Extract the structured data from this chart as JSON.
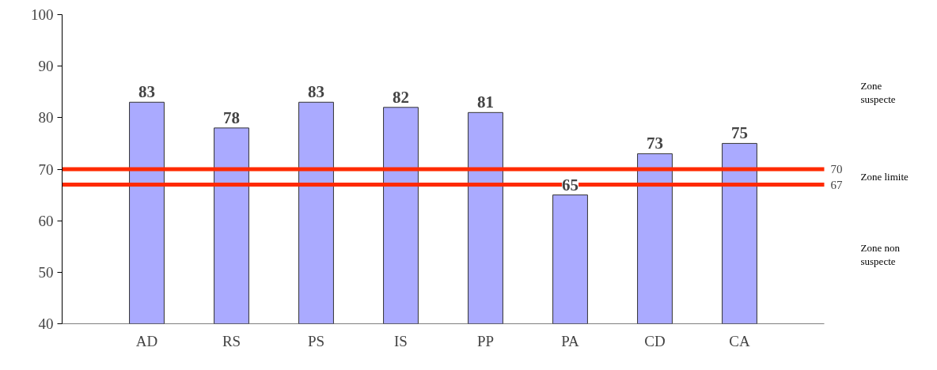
{
  "chart_data": {
    "type": "bar",
    "categories": [
      "AD",
      "RS",
      "PS",
      "IS",
      "PP",
      "PA",
      "CD",
      "CA"
    ],
    "values": [
      83,
      78,
      83,
      82,
      81,
      65,
      73,
      75
    ],
    "color": "#aaaaff",
    "ylim": [
      40,
      100
    ],
    "yticks": [
      40,
      50,
      60,
      70,
      80,
      90,
      100
    ],
    "grid": false,
    "data_labels": true,
    "ref_lines": [
      {
        "axis": "y",
        "value": 70,
        "label": "70",
        "color": "#ff2a00"
      },
      {
        "axis": "y",
        "value": 67,
        "label": "67",
        "color": "#ff2a00"
      }
    ],
    "annotations": [
      "Zone suspecte",
      "Zone limite",
      "Zone non suspecte"
    ]
  }
}
